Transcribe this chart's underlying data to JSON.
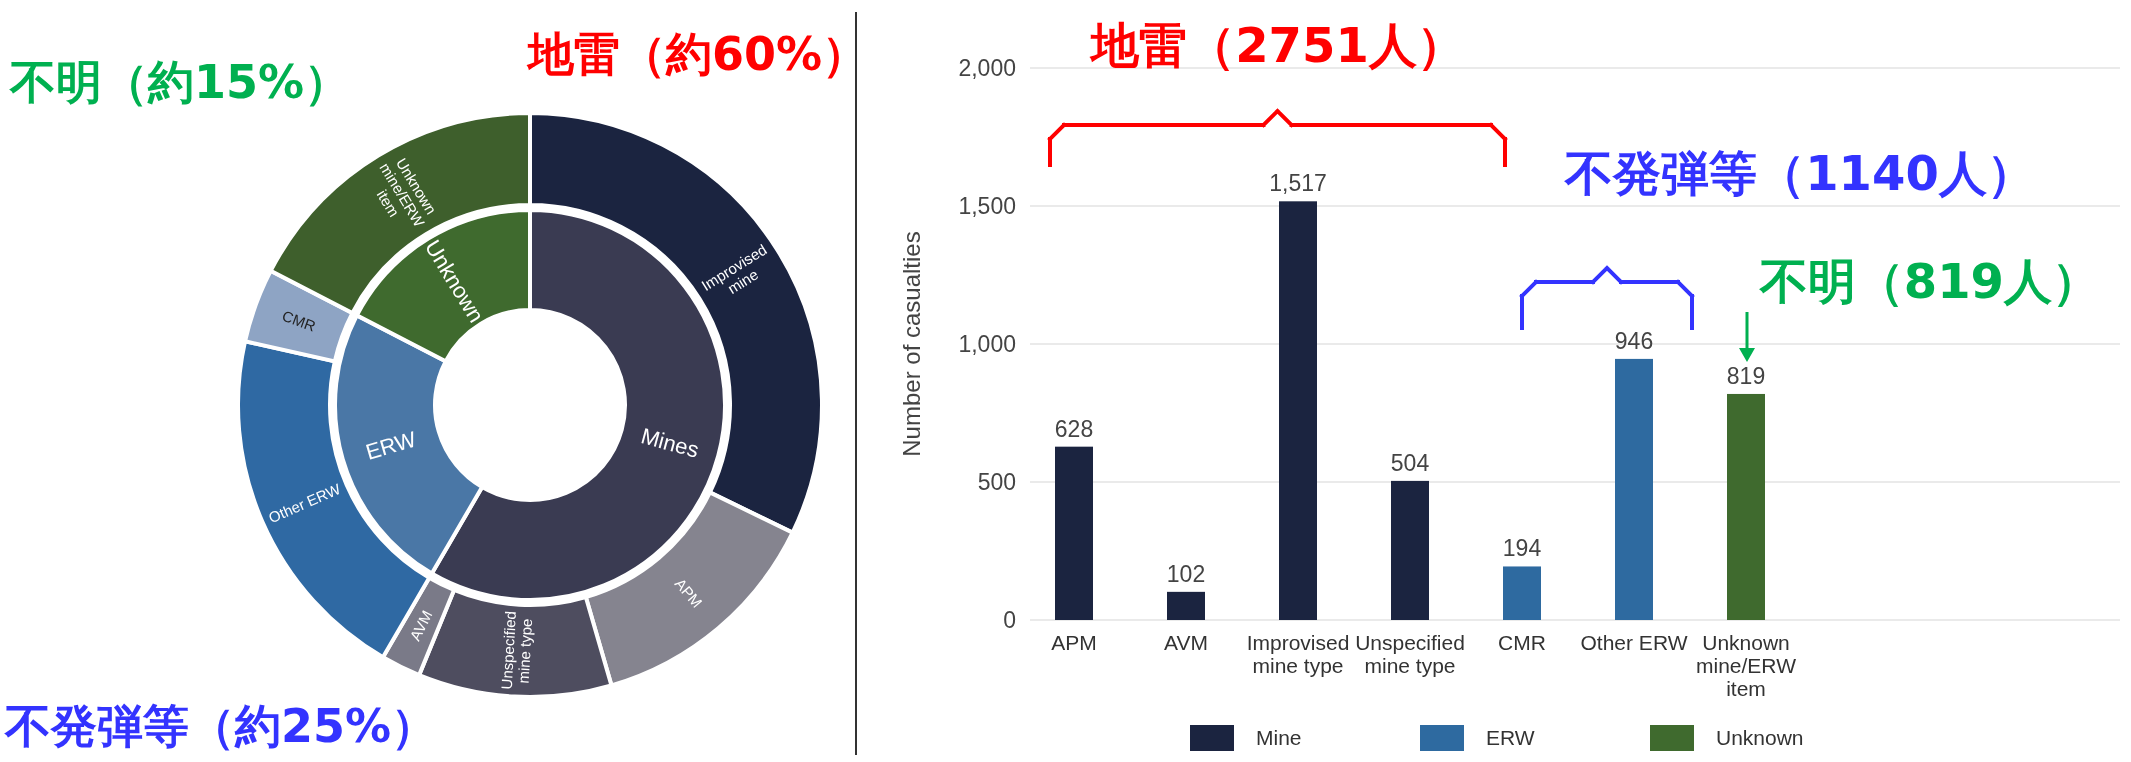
{
  "chart_data": [
    {
      "type": "donut",
      "categories": [
        "Mines",
        "ERW",
        "Unknown"
      ],
      "values": [
        58.4,
        24.2,
        17.4
      ],
      "colors": [
        "#3a3b52",
        "#4a77a6",
        "#3f6a2e"
      ],
      "annotations": [
        "地雷（約60%）",
        "不明（約15%）",
        "不発弾等（約25%）"
      ]
    },
    {
      "type": "donut",
      "categories": [
        "Improvised mine",
        "APM",
        "Unspecified mine type",
        "AVM",
        "Other ERW",
        "CMR",
        "Unknown mine/ERW item"
      ],
      "values": [
        32.2,
        13.3,
        10.7,
        2.2,
        20.1,
        4.1,
        17.4
      ],
      "colors": [
        "#1b2440",
        "#85848f",
        "#4e4d5f",
        "#7a7a88",
        "#2f69a3",
        "#8ea4c4",
        "#3e5f2c"
      ]
    },
    {
      "type": "bar",
      "categories": [
        "APM",
        "AVM",
        "Improvised mine type",
        "Unspecified mine type",
        "CMR",
        "Other ERW",
        "Unknown mine/ERW item"
      ],
      "series": [
        {
          "name": "Mine",
          "color": "#1b2440",
          "values": [
            628,
            102,
            1517,
            504,
            null,
            null,
            null
          ],
          "value_labels": [
            "628",
            "102",
            "1,517",
            "504",
            null,
            null,
            null
          ]
        },
        {
          "name": "ERW",
          "color": "#2e6aa0",
          "values": [
            null,
            null,
            null,
            null,
            194,
            946,
            null
          ],
          "value_labels": [
            null,
            null,
            null,
            null,
            "194",
            "946",
            null
          ]
        },
        {
          "name": "Unknown",
          "color": "#3f6a2e",
          "values": [
            null,
            null,
            null,
            null,
            null,
            null,
            819
          ],
          "value_labels": [
            null,
            null,
            null,
            null,
            null,
            null,
            "819"
          ]
        }
      ],
      "ylabel": "Number of casualties",
      "ylim": [
        0,
        2000
      ],
      "yticks": [
        0,
        500,
        {
          "value": 1000,
          "label": "1,000"
        },
        {
          "value": 1500,
          "label": "1,500"
        },
        {
          "value": 2000,
          "label": "2,000"
        }
      ],
      "grid": "y",
      "legend": "bottom",
      "annotations": [
        "地雷（2751人）",
        "不発弾等（1140人）",
        "不明（819人）"
      ]
    }
  ]
}
